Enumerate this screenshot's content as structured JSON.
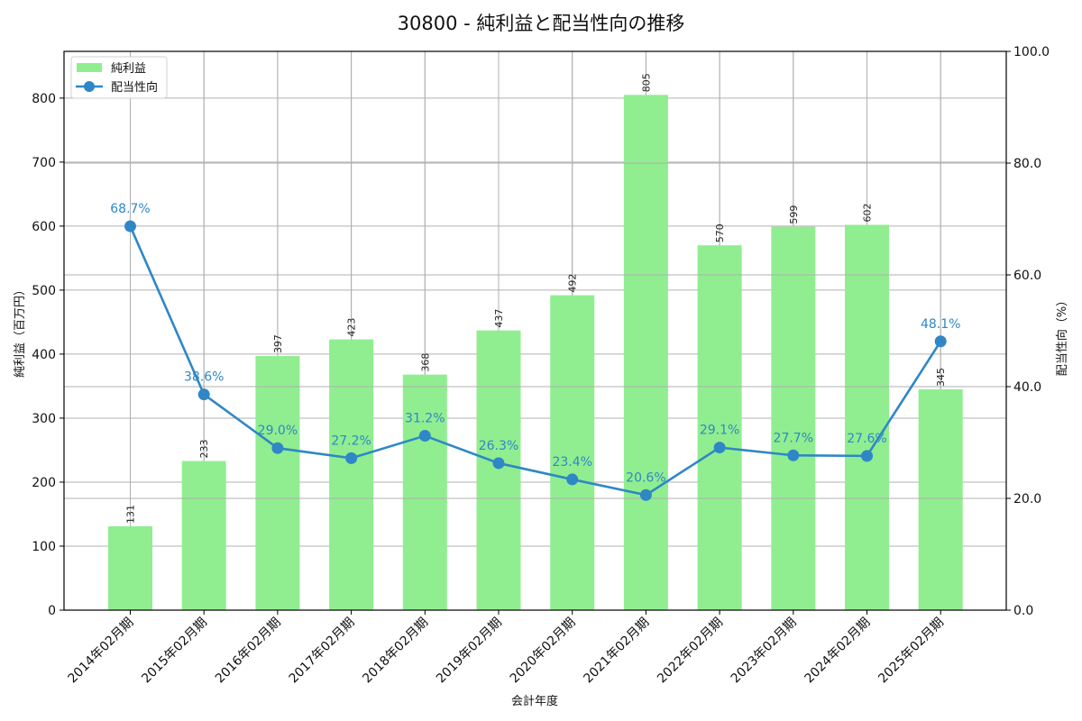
{
  "title": "30800 - 純利益と配当性向の推移",
  "chart_data": {
    "type": "bar+line",
    "title": "30800 - 純利益と配当性向の推移",
    "xlabel": "会計年度",
    "ylabel_left": "純利益（百万円）",
    "ylabel_right": "配当性向（%）",
    "categories": [
      "2014年02月期",
      "2015年02月期",
      "2016年02月期",
      "2017年02月期",
      "2018年02月期",
      "2019年02月期",
      "2020年02月期",
      "2021年02月期",
      "2022年02月期",
      "2023年02月期",
      "2024年02月期",
      "2025年02月期"
    ],
    "series": [
      {
        "name": "純利益",
        "type": "bar",
        "axis": "left",
        "color": "#90ee90",
        "values": [
          131,
          233,
          397,
          423,
          368,
          437,
          492,
          805,
          570,
          599,
          602,
          345
        ],
        "labels": [
          "131",
          "233",
          "397",
          "423",
          "368",
          "437",
          "492",
          "805",
          "570",
          "599",
          "602",
          "345"
        ]
      },
      {
        "name": "配当性向",
        "type": "line",
        "axis": "right",
        "color": "#2f87c6",
        "values": [
          68.7,
          38.6,
          29.0,
          27.2,
          31.2,
          26.3,
          23.4,
          20.6,
          29.1,
          27.7,
          27.6,
          48.1
        ],
        "labels": [
          "68.7%",
          "38.6%",
          "29.0%",
          "27.2%",
          "31.2%",
          "26.3%",
          "23.4%",
          "20.6%",
          "29.1%",
          "27.7%",
          "27.6%",
          "48.1%"
        ]
      }
    ],
    "ylim_left": [
      0,
      873
    ],
    "ylim_right": [
      0,
      100
    ],
    "yticks_left": [
      "0",
      "100",
      "200",
      "300",
      "400",
      "500",
      "600",
      "700",
      "800"
    ],
    "yticks_right": [
      "0.0",
      "20.0",
      "40.0",
      "60.0",
      "80.0",
      "100.0"
    ],
    "grid": true,
    "legend_position": "upper left"
  },
  "legend": [
    {
      "label": "純利益",
      "icon": "green-bar-swatch"
    },
    {
      "label": "配当性向",
      "icon": "blue-line-marker"
    }
  ]
}
